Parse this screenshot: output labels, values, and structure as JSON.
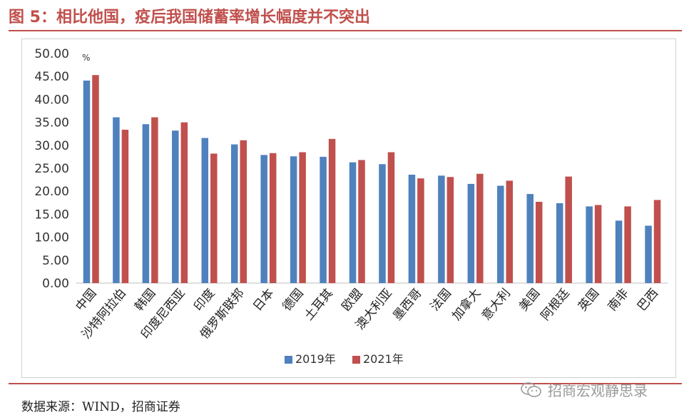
{
  "header": {
    "title": "图 5：相比他国，疫后我国储蓄率增长幅度并不突出"
  },
  "footer": {
    "source": "数据来源：WIND，招商证券",
    "watermark": "招商宏观静思录",
    "watermark_icon": "wechat-icon"
  },
  "chart_data": {
    "type": "bar",
    "title": "",
    "ylabel": "",
    "yunit": "%",
    "ylim": [
      0,
      50
    ],
    "ytick_labels": [
      "0.00",
      "5.00",
      "10.00",
      "15.00",
      "20.00",
      "25.00",
      "30.00",
      "35.00",
      "40.00",
      "45.00",
      "50.00"
    ],
    "categories": [
      "中国",
      "沙特阿拉伯",
      "韩国",
      "印度尼西亚",
      "印度",
      "俄罗斯联邦",
      "日本",
      "德国",
      "土耳其",
      "欧盟",
      "澳大利亚",
      "墨西哥",
      "法国",
      "加拿大",
      "意大利",
      "美国",
      "阿根廷",
      "英国",
      "南非",
      "巴西"
    ],
    "series": [
      {
        "name": "2019年",
        "color": "#4f81bd",
        "values": [
          44.1,
          36.1,
          34.6,
          33.2,
          31.6,
          30.2,
          27.9,
          27.6,
          27.5,
          26.3,
          25.9,
          23.6,
          23.4,
          21.6,
          21.2,
          19.4,
          17.4,
          16.7,
          13.6,
          12.5
        ]
      },
      {
        "name": "2021年",
        "color": "#c0504d",
        "values": [
          45.3,
          33.4,
          36.1,
          35.0,
          28.2,
          31.1,
          28.3,
          28.5,
          31.4,
          26.8,
          28.5,
          22.8,
          23.1,
          23.8,
          22.3,
          17.7,
          23.2,
          17.0,
          16.7,
          18.1
        ]
      }
    ],
    "legend_position": "bottom",
    "grid": false
  }
}
